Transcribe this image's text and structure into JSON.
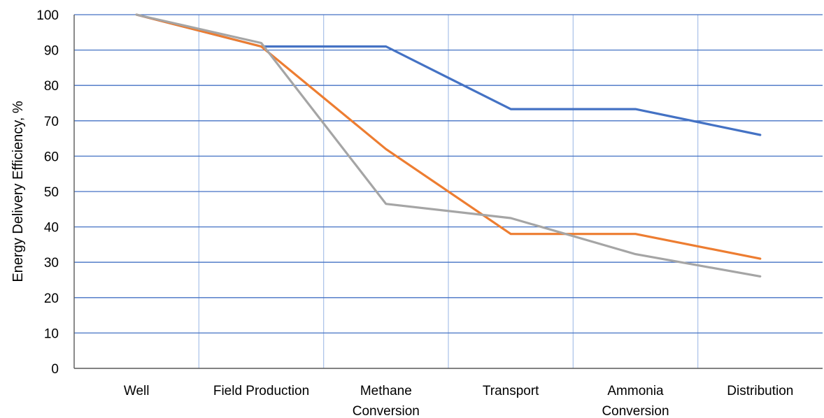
{
  "chart_data": {
    "type": "line",
    "title": "",
    "xlabel": "",
    "ylabel": "Energy Delivery Efficiency, %",
    "ylim": [
      0,
      100
    ],
    "yticks": [
      "0",
      "10",
      "20",
      "30",
      "40",
      "50",
      "60",
      "70",
      "80",
      "90",
      "100"
    ],
    "grid": true,
    "legend": "none",
    "categories": [
      [
        "Well"
      ],
      [
        "Field Production"
      ],
      [
        "Methane",
        "Conversion"
      ],
      [
        "Transport"
      ],
      [
        "Ammonia",
        "Conversion"
      ],
      [
        "Distribution"
      ]
    ],
    "series": [
      {
        "color": "#4472C4",
        "x": [
          0,
          1,
          1.5,
          2,
          3,
          4,
          5
        ],
        "y": [
          100,
          91,
          91,
          91,
          73.3,
          73.3,
          66
        ]
      },
      {
        "color": "#ED7D31",
        "x": [
          0,
          1,
          2,
          3,
          4,
          5
        ],
        "y": [
          100,
          91,
          62,
          38,
          38,
          31
        ]
      },
      {
        "color": "#A5A5A5",
        "x": [
          0,
          1,
          2,
          3,
          4,
          5
        ],
        "y": [
          100,
          92,
          46.5,
          42.5,
          32.3,
          26
        ]
      }
    ],
    "colors": {
      "horizontal_grid": "#4472C4",
      "vertical_grid": "#A9C1E8",
      "axis": "#595959"
    }
  }
}
